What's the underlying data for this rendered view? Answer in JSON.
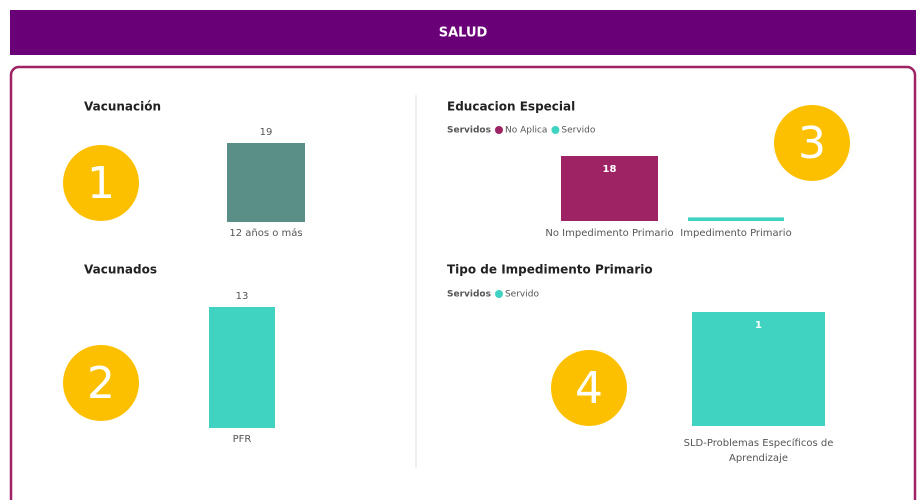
{
  "header": {
    "title": "SALUD"
  },
  "panels": [
    {
      "title": "Vacunación",
      "type": "bar",
      "categories": [
        "12 años o más"
      ],
      "series": [
        {
          "color": "#5a8f87",
          "values": [
            19
          ]
        }
      ],
      "label_position": "above",
      "badge": "1"
    },
    {
      "title": "Vacunados",
      "type": "bar",
      "categories": [
        "PFR"
      ],
      "series": [
        {
          "color": "#41d3c1",
          "values": [
            13
          ]
        }
      ],
      "label_position": "above",
      "badge": "2"
    },
    {
      "title": "Educacion Especial",
      "type": "bar",
      "legend_title": "Servidos",
      "categories": [
        "No Impedimento Primario",
        "Impedimento Primario"
      ],
      "series": [
        {
          "name": "No Aplica",
          "color": "#9e2364",
          "values": [
            18,
            null
          ]
        },
        {
          "name": "Servido",
          "color": "#41d3c1",
          "values": [
            null,
            1
          ]
        }
      ],
      "label_position": "inside",
      "labeled": [
        [
          true,
          false
        ],
        [
          false,
          false
        ]
      ],
      "badge": "3"
    },
    {
      "title": "Tipo de Impedimento Primario",
      "type": "bar",
      "legend_title": "Servidos",
      "categories": [
        "SLD-Problemas Específicos de Aprendizaje"
      ],
      "series": [
        {
          "name": "Servido",
          "color": "#41d3c1",
          "values": [
            1
          ]
        }
      ],
      "label_position": "inside",
      "badge": "4"
    }
  ]
}
